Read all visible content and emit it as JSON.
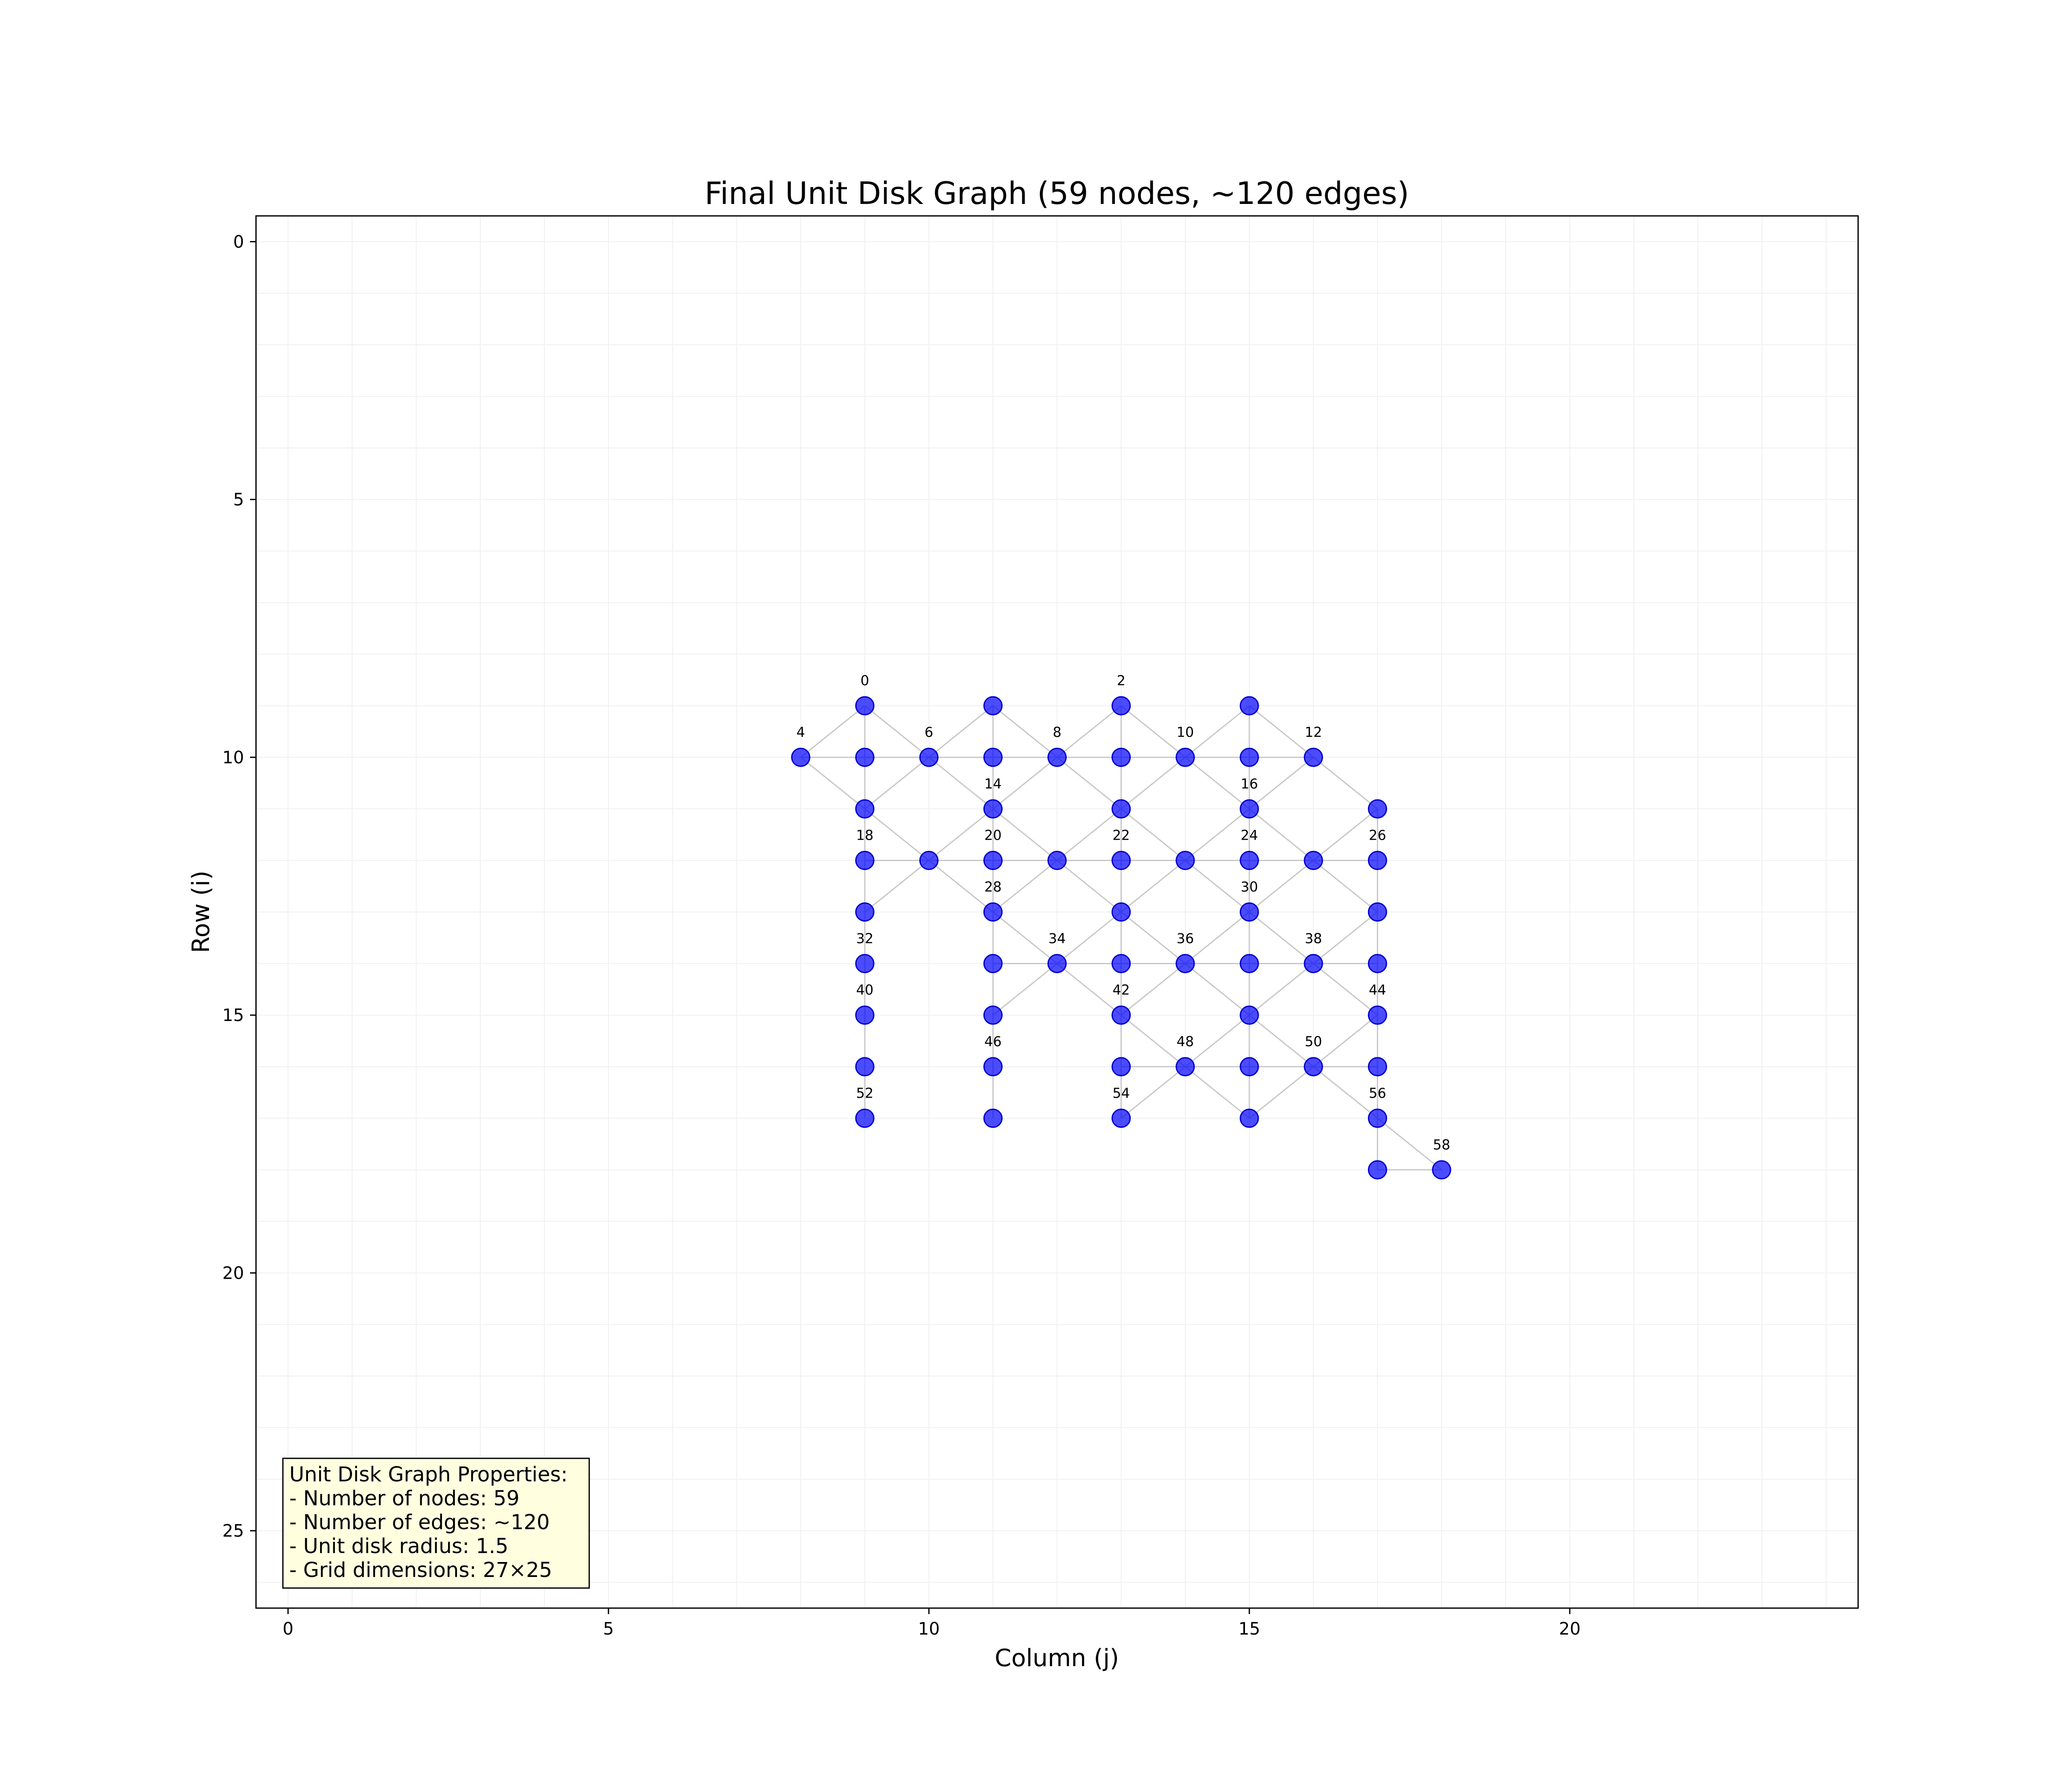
{
  "chart_data": {
    "type": "scatter",
    "title": "Final Unit Disk Graph (59 nodes, ~120 edges)",
    "xlabel": "Column (j)",
    "ylabel": "Row (i)",
    "xlim": [
      -0.5,
      24.5
    ],
    "ylim": [
      26.5,
      -0.5
    ],
    "y_inverted": true,
    "grid": true,
    "xticks": [
      0,
      5,
      10,
      15,
      20
    ],
    "yticks": [
      0,
      5,
      10,
      15,
      20,
      25
    ],
    "edge_radius": 1.5,
    "nodes": [
      {
        "id": 0,
        "x": 9,
        "y": 9,
        "label": "0"
      },
      {
        "id": 1,
        "x": 11,
        "y": 9,
        "label": ""
      },
      {
        "id": 2,
        "x": 13,
        "y": 9,
        "label": "2"
      },
      {
        "id": 3,
        "x": 15,
        "y": 9,
        "label": ""
      },
      {
        "id": 4,
        "x": 8,
        "y": 10,
        "label": "4"
      },
      {
        "id": 5,
        "x": 9,
        "y": 10,
        "label": ""
      },
      {
        "id": 6,
        "x": 10,
        "y": 10,
        "label": "6"
      },
      {
        "id": 7,
        "x": 11,
        "y": 10,
        "label": ""
      },
      {
        "id": 8,
        "x": 12,
        "y": 10,
        "label": "8"
      },
      {
        "id": 9,
        "x": 13,
        "y": 10,
        "label": ""
      },
      {
        "id": 10,
        "x": 14,
        "y": 10,
        "label": "10"
      },
      {
        "id": 11,
        "x": 15,
        "y": 10,
        "label": ""
      },
      {
        "id": 12,
        "x": 16,
        "y": 10,
        "label": "12"
      },
      {
        "id": 13,
        "x": 9,
        "y": 11,
        "label": ""
      },
      {
        "id": 14,
        "x": 11,
        "y": 11,
        "label": "14"
      },
      {
        "id": 15,
        "x": 13,
        "y": 11,
        "label": ""
      },
      {
        "id": 16,
        "x": 15,
        "y": 11,
        "label": "16"
      },
      {
        "id": 17,
        "x": 17,
        "y": 11,
        "label": ""
      },
      {
        "id": 18,
        "x": 9,
        "y": 12,
        "label": "18"
      },
      {
        "id": 19,
        "x": 10,
        "y": 12,
        "label": ""
      },
      {
        "id": 20,
        "x": 11,
        "y": 12,
        "label": "20"
      },
      {
        "id": 21,
        "x": 12,
        "y": 12,
        "label": ""
      },
      {
        "id": 22,
        "x": 13,
        "y": 12,
        "label": "22"
      },
      {
        "id": 23,
        "x": 14,
        "y": 12,
        "label": ""
      },
      {
        "id": 24,
        "x": 15,
        "y": 12,
        "label": "24"
      },
      {
        "id": 25,
        "x": 16,
        "y": 12,
        "label": ""
      },
      {
        "id": 26,
        "x": 17,
        "y": 12,
        "label": "26"
      },
      {
        "id": 27,
        "x": 9,
        "y": 13,
        "label": ""
      },
      {
        "id": 28,
        "x": 11,
        "y": 13,
        "label": "28"
      },
      {
        "id": 29,
        "x": 13,
        "y": 13,
        "label": ""
      },
      {
        "id": 30,
        "x": 15,
        "y": 13,
        "label": "30"
      },
      {
        "id": 31,
        "x": 17,
        "y": 13,
        "label": ""
      },
      {
        "id": 32,
        "x": 9,
        "y": 14,
        "label": "32"
      },
      {
        "id": 33,
        "x": 11,
        "y": 14,
        "label": ""
      },
      {
        "id": 34,
        "x": 12,
        "y": 14,
        "label": "34"
      },
      {
        "id": 35,
        "x": 13,
        "y": 14,
        "label": ""
      },
      {
        "id": 36,
        "x": 14,
        "y": 14,
        "label": "36"
      },
      {
        "id": 37,
        "x": 15,
        "y": 14,
        "label": ""
      },
      {
        "id": 38,
        "x": 16,
        "y": 14,
        "label": "38"
      },
      {
        "id": 39,
        "x": 17,
        "y": 14,
        "label": ""
      },
      {
        "id": 40,
        "x": 9,
        "y": 15,
        "label": "40"
      },
      {
        "id": 41,
        "x": 11,
        "y": 15,
        "label": ""
      },
      {
        "id": 42,
        "x": 13,
        "y": 15,
        "label": "42"
      },
      {
        "id": 43,
        "x": 15,
        "y": 15,
        "label": ""
      },
      {
        "id": 44,
        "x": 17,
        "y": 15,
        "label": "44"
      },
      {
        "id": 45,
        "x": 9,
        "y": 16,
        "label": ""
      },
      {
        "id": 46,
        "x": 11,
        "y": 16,
        "label": "46"
      },
      {
        "id": 47,
        "x": 13,
        "y": 16,
        "label": ""
      },
      {
        "id": 48,
        "x": 14,
        "y": 16,
        "label": "48"
      },
      {
        "id": 49,
        "x": 15,
        "y": 16,
        "label": ""
      },
      {
        "id": 50,
        "x": 16,
        "y": 16,
        "label": "50"
      },
      {
        "id": 51,
        "x": 17,
        "y": 16,
        "label": ""
      },
      {
        "id": 52,
        "x": 9,
        "y": 17,
        "label": "52"
      },
      {
        "id": 53,
        "x": 11,
        "y": 17,
        "label": ""
      },
      {
        "id": 54,
        "x": 13,
        "y": 17,
        "label": "54"
      },
      {
        "id": 55,
        "x": 15,
        "y": 17,
        "label": ""
      },
      {
        "id": 56,
        "x": 17,
        "y": 17,
        "label": "56"
      },
      {
        "id": 57,
        "x": 17,
        "y": 18,
        "label": ""
      },
      {
        "id": 58,
        "x": 18,
        "y": 18,
        "label": "58"
      }
    ],
    "info_box": [
      "Unit Disk Graph Properties:",
      "- Number of nodes: 59",
      "- Number of edges: ~120",
      "- Unit disk radius: 1.5",
      "- Grid dimensions: 27×25"
    ],
    "colors": {
      "node_fill": "#0000ff",
      "node_edge": "#0000cc",
      "edge": "#c8c8c8",
      "grid": "#f0f0f0",
      "info_box_bg": "#ffffe0"
    }
  }
}
